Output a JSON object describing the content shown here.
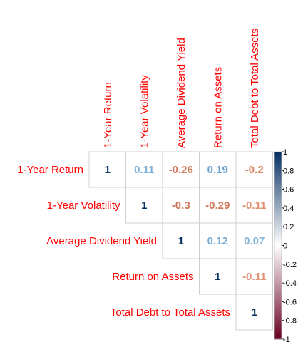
{
  "chart_data": {
    "type": "heatmap",
    "layout": "upper-triangle",
    "variables": [
      "1-Year Return",
      "1-Year Volatility",
      "Average Dividend Yield",
      "Return on Assets",
      "Total Debt to Total Assets"
    ],
    "matrix": [
      [
        1,
        0.11,
        -0.26,
        0.19,
        -0.2
      ],
      [
        null,
        1,
        -0.3,
        -0.29,
        -0.11
      ],
      [
        null,
        null,
        1,
        0.12,
        0.07
      ],
      [
        null,
        null,
        null,
        1,
        -0.11
      ],
      [
        null,
        null,
        null,
        null,
        1
      ]
    ],
    "display_values": [
      [
        "1",
        "0.11",
        "-0.26",
        "0.19",
        "-0.2"
      ],
      [
        null,
        "1",
        "-0.3",
        "-0.29",
        "-0.11"
      ],
      [
        null,
        null,
        "1",
        "0.12",
        "0.07"
      ],
      [
        null,
        null,
        null,
        "1",
        "-0.11"
      ],
      [
        null,
        null,
        null,
        null,
        "1"
      ]
    ],
    "colorbar": {
      "range": [
        -1,
        1
      ],
      "ticks": [
        "1",
        "0.8",
        "0.6",
        "0.4",
        "0.2",
        "0",
        "-0.2",
        "-0.4",
        "-0.6",
        "-0.8",
        "-1"
      ],
      "colors": {
        "negative": "#67001f",
        "neutral": "#ffffff",
        "positive": "#053061"
      },
      "placement": "right"
    },
    "label_color": "#ff0000",
    "grid": true
  }
}
